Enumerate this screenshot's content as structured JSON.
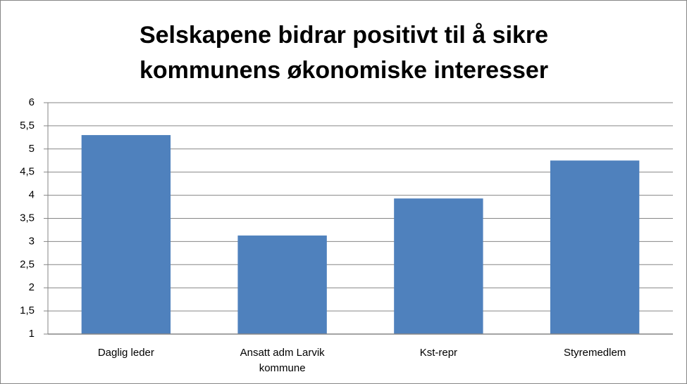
{
  "chart_data": {
    "type": "bar",
    "title": "Selskapene bidrar positivt til å sikre kommunens økonomiske interesser",
    "categories": [
      "Daglig leder",
      "Ansatt adm Larvik kommune",
      "Kst-repr",
      "Styremedlem"
    ],
    "values": [
      5.3,
      3.13,
      3.93,
      4.75
    ],
    "color": "#4f81bd",
    "ylim": [
      1,
      6
    ],
    "yticks": [
      1,
      {
        "value": 1.5,
        "label": "1,5"
      },
      2,
      {
        "value": 2.5,
        "label": "2,5"
      },
      3,
      {
        "value": 3.5,
        "label": "3,5"
      },
      4,
      {
        "value": 4.5,
        "label": "4,5"
      },
      5,
      {
        "value": 5.5,
        "label": "5,5"
      },
      6
    ],
    "grid": true
  }
}
